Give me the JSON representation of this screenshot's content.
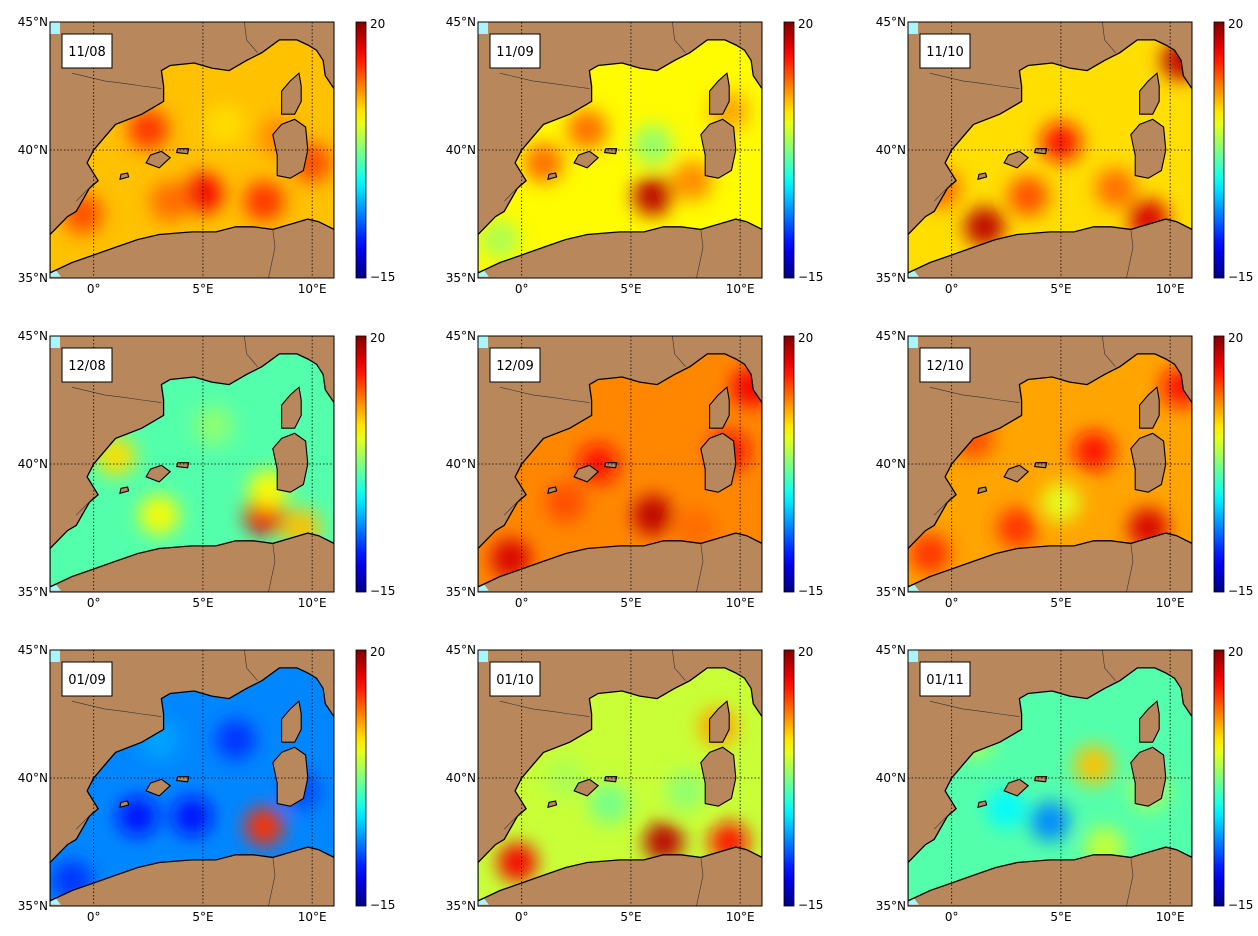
{
  "figure": {
    "colors": {
      "land": "#b9875c",
      "ocean_edge": "#aaf5fb",
      "coast": "#000000",
      "grid": "#000000"
    },
    "colorbar": {
      "max_label": "20",
      "min_label": "−15",
      "vmin": -15,
      "vmax": 20
    },
    "lat_labels": [
      "45°N",
      "40°N",
      "35°N"
    ],
    "lon_labels": [
      "0°",
      "5°E",
      "10°E"
    ],
    "panels": [
      {
        "date": "11/08",
        "mean": 9,
        "blobs": [
          [
            2.5,
            40.8,
            14
          ],
          [
            5,
            38.3,
            16
          ],
          [
            7.8,
            38,
            14
          ],
          [
            -0.5,
            37.5,
            13
          ],
          [
            3.5,
            38,
            12
          ],
          [
            10,
            39.5,
            13
          ],
          [
            6,
            41,
            8
          ],
          [
            8.5,
            40.5,
            11
          ]
        ]
      },
      {
        "date": "11/09",
        "mean": 7,
        "blobs": [
          [
            6,
            38.2,
            18
          ],
          [
            3,
            40.8,
            12
          ],
          [
            7.8,
            38.8,
            11
          ],
          [
            1,
            39.5,
            12
          ],
          [
            6,
            40.2,
            3
          ],
          [
            9.5,
            41.5,
            10
          ],
          [
            -1,
            36.5,
            4
          ]
        ]
      },
      {
        "date": "11/10",
        "mean": 8,
        "blobs": [
          [
            1.5,
            37,
            18
          ],
          [
            5,
            40.3,
            15
          ],
          [
            9,
            37.3,
            17
          ],
          [
            10.5,
            43.5,
            18
          ],
          [
            3.5,
            38.2,
            13
          ],
          [
            7.5,
            38.5,
            12
          ],
          [
            -0.5,
            38.5,
            12
          ]
        ]
      },
      {
        "date": "12/08",
        "mean": 1,
        "blobs": [
          [
            7.8,
            38,
            16
          ],
          [
            1,
            40.3,
            8
          ],
          [
            8,
            39,
            7
          ],
          [
            3,
            38,
            7
          ],
          [
            5.5,
            41.5,
            3
          ],
          [
            9.5,
            37.5,
            9
          ]
        ]
      },
      {
        "date": "12/09",
        "mean": 11,
        "blobs": [
          [
            6,
            38,
            18
          ],
          [
            -0.5,
            36.3,
            17
          ],
          [
            3.5,
            40,
            15
          ],
          [
            9.5,
            40.5,
            15
          ],
          [
            10.5,
            43,
            16
          ],
          [
            2,
            38.5,
            13
          ],
          [
            8,
            37.5,
            12
          ]
        ]
      },
      {
        "date": "12/10",
        "mean": 10,
        "blobs": [
          [
            9,
            37.5,
            17
          ],
          [
            -1,
            36.5,
            14
          ],
          [
            6.5,
            40.5,
            15
          ],
          [
            3,
            37.5,
            14
          ],
          [
            10.5,
            43,
            15
          ],
          [
            5,
            38.5,
            6
          ],
          [
            1,
            41,
            13
          ]
        ]
      },
      {
        "date": "01/09",
        "mean": -6,
        "blobs": [
          [
            7.8,
            38.1,
            14
          ],
          [
            2,
            38.5,
            -10
          ],
          [
            4.5,
            38.5,
            -10
          ],
          [
            6.5,
            41.5,
            -9
          ],
          [
            9.5,
            39.5,
            -8
          ],
          [
            -1,
            36,
            -9
          ],
          [
            3,
            41.5,
            -5
          ]
        ]
      },
      {
        "date": "01/10",
        "mean": 5,
        "blobs": [
          [
            6.5,
            37.5,
            18
          ],
          [
            -0.2,
            36.7,
            16
          ],
          [
            9.5,
            37.5,
            15
          ],
          [
            4,
            39,
            2
          ],
          [
            9,
            42,
            10
          ],
          [
            2,
            40,
            4
          ],
          [
            7.5,
            39.5,
            3
          ]
        ]
      },
      {
        "date": "01/11",
        "mean": 1,
        "blobs": [
          [
            4.5,
            38.3,
            -6
          ],
          [
            2.5,
            38.8,
            -2
          ],
          [
            6.5,
            40.5,
            9
          ],
          [
            9,
            39.5,
            4
          ],
          [
            7,
            37.3,
            5
          ],
          [
            1,
            41.5,
            4
          ]
        ]
      }
    ]
  }
}
